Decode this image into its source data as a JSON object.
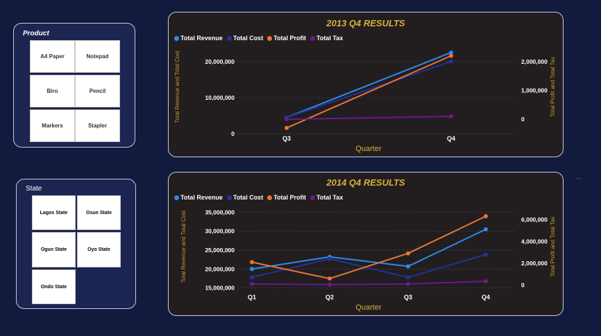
{
  "product_slicer": {
    "title": "Product",
    "items": [
      "A4 Paper",
      "Notepad",
      "Biro",
      "Pencil",
      "Markers",
      "Stapler"
    ]
  },
  "state_slicer": {
    "title": "State",
    "items": [
      "Lagos State",
      "Osun State",
      "Ogun State",
      "Oyo State",
      "Ondo State"
    ]
  },
  "colors": {
    "background": "#121a3e",
    "card": "#221e1f",
    "title": "#d8b13a",
    "revenue": "#2b8cf0",
    "cost": "#23329c",
    "profit": "#e8743b",
    "tax": "#6a1a8c"
  },
  "chart_data": [
    {
      "type": "line",
      "title": "2013 Q4 RESULTS",
      "xlabel": "Quarter",
      "ylabel_left": "Total Revenue and Total Cost",
      "ylabel_right": "Total Profit and Total Tax",
      "categories": [
        "Q3",
        "Q4"
      ],
      "left_axis": {
        "ylim": [
          0,
          24000000
        ],
        "ticks": [
          "0",
          "10,000,000",
          "20,000,000"
        ]
      },
      "right_axis": {
        "ylim": [
          -500000,
          2500000
        ],
        "ticks": [
          "0",
          "1,000,000",
          "2,000,000"
        ]
      },
      "series": [
        {
          "name": "Total Revenue",
          "axis": "left",
          "color": "#2b8cf0",
          "values": [
            4500000,
            22500000
          ]
        },
        {
          "name": "Total Cost",
          "axis": "left",
          "color": "#23329c",
          "values": [
            4500000,
            20000000
          ]
        },
        {
          "name": "Total Profit",
          "axis": "right",
          "color": "#e8743b",
          "values": [
            -300000,
            2200000
          ]
        },
        {
          "name": "Total Tax",
          "axis": "right",
          "color": "#6a1a8c",
          "values": [
            0,
            100000
          ]
        }
      ],
      "legend_position": "top-left",
      "grid": true
    },
    {
      "type": "line",
      "title": "2014 Q4 RESULTS",
      "xlabel": "Quarter",
      "ylabel_left": "Total Revenue and Total Cost",
      "ylabel_right": "Total Profit and Total Tax",
      "categories": [
        "Q1",
        "Q2",
        "Q3",
        "Q4"
      ],
      "left_axis": {
        "ylim": [
          14000000,
          36000000
        ],
        "ticks": [
          "15,000,000",
          "20,000,000",
          "25,000,000",
          "30,000,000",
          "35,000,000"
        ]
      },
      "right_axis": {
        "ylim": [
          -600000,
          7000000
        ],
        "ticks": [
          "0",
          "2,000,000",
          "4,000,000",
          "6,000,000"
        ]
      },
      "series": [
        {
          "name": "Total Revenue",
          "axis": "left",
          "color": "#2b8cf0",
          "values": [
            20000000,
            23200000,
            20700000,
            30500000
          ]
        },
        {
          "name": "Total Cost",
          "axis": "left",
          "color": "#23329c",
          "values": [
            17800000,
            22700000,
            17800000,
            23800000
          ]
        },
        {
          "name": "Total Profit",
          "axis": "right",
          "color": "#e8743b",
          "values": [
            2100000,
            600000,
            2900000,
            6300000
          ]
        },
        {
          "name": "Total Tax",
          "axis": "right",
          "color": "#6a1a8c",
          "values": [
            100000,
            50000,
            100000,
            350000
          ]
        }
      ],
      "legend_position": "top-left",
      "grid": true
    }
  ]
}
